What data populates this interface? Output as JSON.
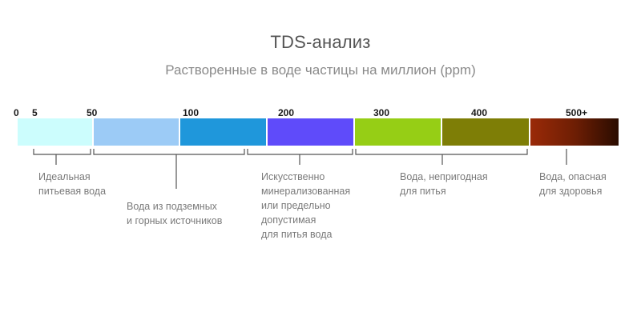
{
  "title": "TDS-анализ",
  "subtitle": "Растворенные в воде частицы на миллион (ppm)",
  "scale": {
    "ticks": [
      "0",
      "5",
      "50",
      "100",
      "200",
      "300",
      "400",
      "500+"
    ],
    "segments": [
      {
        "color": "#ccfdfd"
      },
      {
        "color": "#9ccbf6"
      },
      {
        "color": "#1f97db"
      },
      {
        "color": "#5f4bfa"
      },
      {
        "color": "#96ce15"
      },
      {
        "color": "#7e7e06"
      },
      {
        "gradient": [
          "#9a2a08",
          "#6e1e04",
          "#2a0c00"
        ]
      }
    ]
  },
  "notes": [
    {
      "text": "Идеальная\nпитьевая вода"
    },
    {
      "text": "Вода из подземных\nи горных источников"
    },
    {
      "text": "Искусственно\nминерализованная\nили предельно\nдопустимая\nдля питья вода"
    },
    {
      "text": "Вода, непригодная\nдля питья"
    },
    {
      "text": "Вода, опасная\nдля здоровья"
    }
  ]
}
